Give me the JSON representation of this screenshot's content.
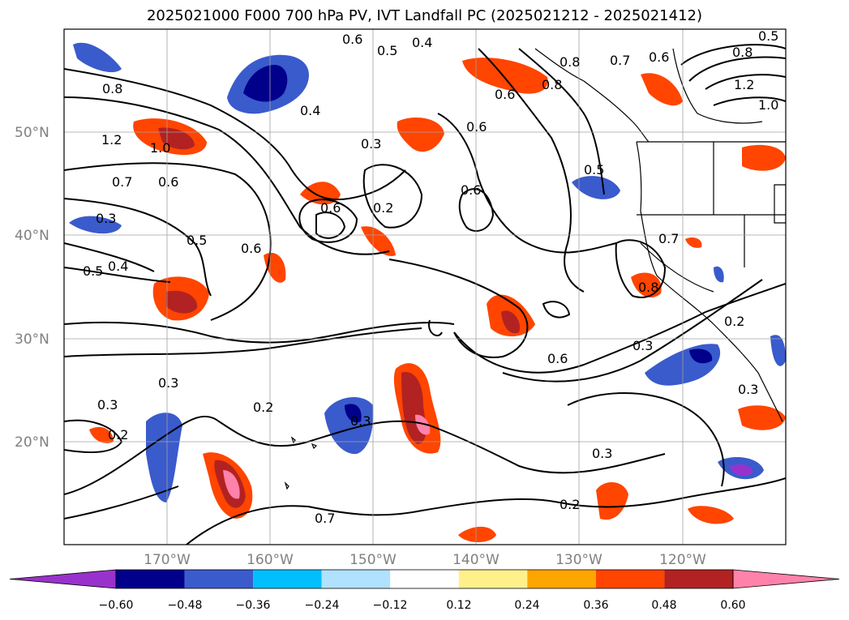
{
  "title": "2025021000 F000 700 hPa PV, IVT Landfall PC (2025021212 - 2025021412)",
  "map": {
    "lat_labels": [
      "50°N",
      "40°N",
      "30°N",
      "20°N"
    ],
    "lon_labels": [
      "170°W",
      "160°W",
      "150°W",
      "140°W",
      "130°W",
      "120°W"
    ],
    "contour_labels": [
      "0.6",
      "0.5",
      "0.4",
      "0.8",
      "0.7",
      "0.6",
      "0.5",
      "0.8",
      "1.2",
      "1.0",
      "0.8",
      "0.4",
      "1.2",
      "1.0",
      "0.7",
      "0.6",
      "0.3",
      "0.6",
      "0.3",
      "0.6",
      "0.2",
      "0.6",
      "0.5",
      "0.6",
      "0.5",
      "0.6",
      "0.4",
      "0.5",
      "0.7",
      "0.8",
      "0.6",
      "0.2",
      "0.3",
      "0.3",
      "0.3",
      "0.2",
      "0.3",
      "0.2",
      "0.3",
      "0.3",
      "0.2",
      "0.7",
      "0.8"
    ]
  },
  "colorbar": {
    "ticks": [
      "−0.60",
      "−0.48",
      "−0.36",
      "−0.24",
      "−0.12",
      "0.12",
      "0.24",
      "0.36",
      "0.48",
      "0.60"
    ],
    "colors": {
      "under": "#9932cc",
      "bins": [
        "#00008b",
        "#3a5bcc",
        "#00bfff",
        "#b0e2ff",
        "#ffffff",
        "#fff08a",
        "#ffa500",
        "#ff4500",
        "#b22222",
        "#ff82ab"
      ],
      "over": "#ff82ab"
    }
  }
}
